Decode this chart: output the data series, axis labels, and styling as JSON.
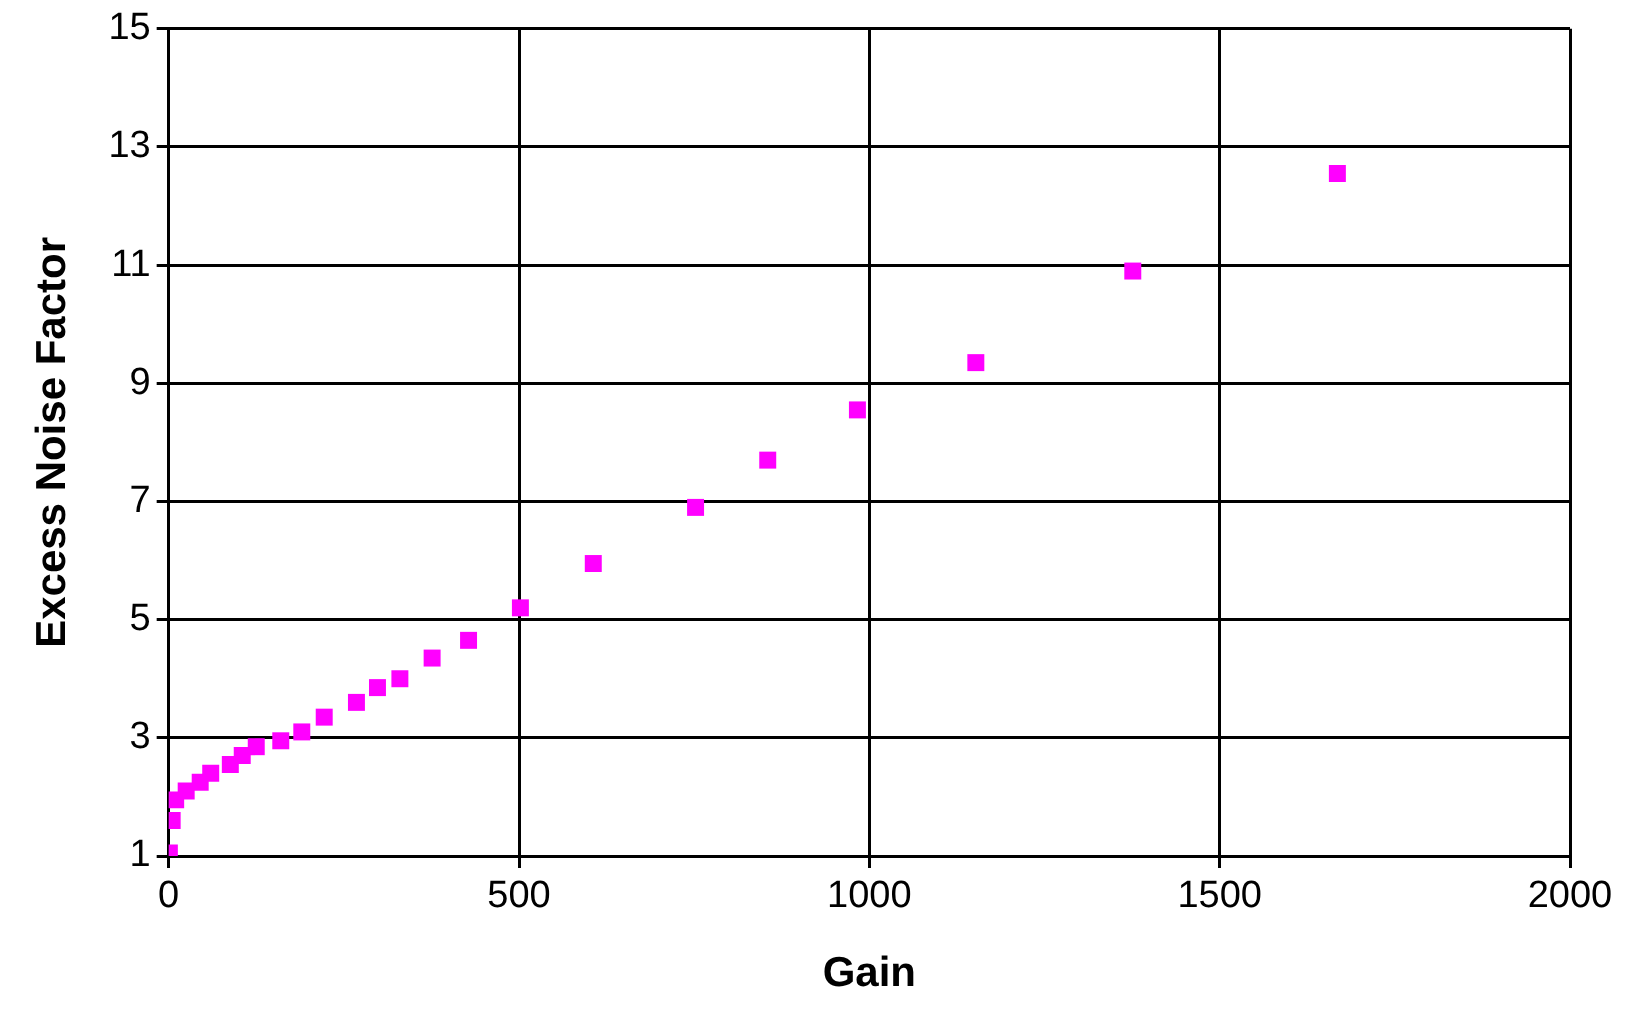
{
  "chart_data": {
    "type": "scatter",
    "xlabel": "Gain",
    "ylabel": "Excess Noise Factor",
    "x": [
      1,
      5,
      10,
      25,
      45,
      60,
      88,
      105,
      125,
      160,
      190,
      222,
      268,
      298,
      330,
      376,
      428,
      502,
      606,
      752,
      855,
      983,
      1152,
      1376,
      1668
    ],
    "series": [
      {
        "color": "#ff00ff",
        "values": [
          1.05,
          1.6,
          1.95,
          2.1,
          2.25,
          2.4,
          2.55,
          2.7,
          2.85,
          2.95,
          3.1,
          3.35,
          3.6,
          3.85,
          4.0,
          4.35,
          4.65,
          5.2,
          5.95,
          6.9,
          7.7,
          8.55,
          9.35,
          10.9,
          12.55
        ]
      }
    ],
    "xlim": [
      0,
      2000
    ],
    "xticks": [
      0,
      500,
      1000,
      1500,
      2000
    ],
    "ylim": [
      1,
      15
    ],
    "yticks": [
      1,
      3,
      5,
      7,
      9,
      11,
      13,
      15
    ],
    "grid": true,
    "legend": false,
    "marker": "square"
  }
}
